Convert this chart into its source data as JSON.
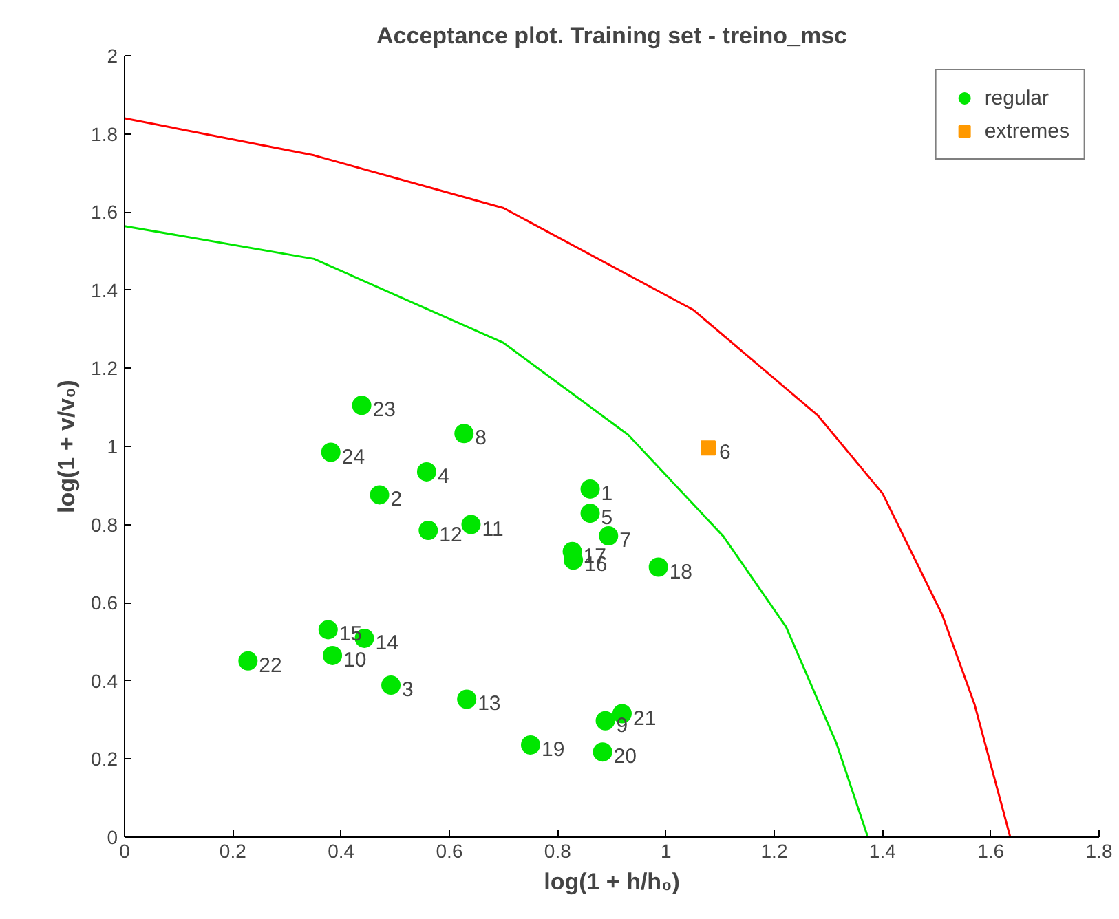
{
  "chart_data": {
    "type": "scatter",
    "title": "Acceptance plot. Training set - treino_msc",
    "xlabel": "log(1 + h/h₀)",
    "ylabel": "log(1 + v/v₀)",
    "xlim": [
      0,
      1.8
    ],
    "ylim": [
      0,
      2
    ],
    "xticks": [
      0,
      0.2,
      0.4,
      0.6,
      0.8,
      1,
      1.2,
      1.4,
      1.6,
      1.8
    ],
    "yticks": [
      0,
      0.2,
      0.4,
      0.6,
      0.8,
      1,
      1.2,
      1.4,
      1.6,
      1.8,
      2
    ],
    "grid": false,
    "legend": "top right",
    "series": [
      {
        "name": "regular",
        "marker": "circle",
        "color": "#00e600",
        "x": [
          0.86,
          0.471,
          0.492,
          0.558,
          0.86,
          0.894,
          0.888,
          0.627,
          0.384,
          0.64,
          0.561,
          0.632,
          0.443,
          0.376,
          0.829,
          0.827,
          0.986,
          0.75,
          0.883,
          0.919,
          0.228,
          0.438,
          0.381
        ],
        "values": [
          0.891,
          0.876,
          0.389,
          0.935,
          0.829,
          0.771,
          0.298,
          1.033,
          0.465,
          0.8,
          0.785,
          0.353,
          0.509,
          0.531,
          0.709,
          0.731,
          0.691,
          0.236,
          0.218,
          0.316,
          0.451,
          1.105,
          0.985
        ]
      },
      {
        "name": "extremes",
        "marker": "square",
        "color": "#ff9900",
        "x": [
          1.078
        ],
        "values": [
          0.996
        ]
      },
      {
        "type": "line",
        "color": "#ff0000",
        "x": [
          0,
          0.35,
          0.7,
          1.05,
          1.28,
          1.4,
          1.51,
          1.57,
          1.636
        ],
        "values": [
          1.84,
          1.745,
          1.61,
          1.35,
          1.08,
          0.88,
          0.57,
          0.34,
          0
        ]
      },
      {
        "type": "line",
        "color": "#00e600",
        "x": [
          0,
          0.35,
          0.7,
          0.93,
          1.106,
          1.222,
          1.315,
          1.373
        ],
        "values": [
          1.564,
          1.48,
          1.265,
          1.03,
          0.77,
          0.538,
          0.24,
          0
        ]
      }
    ],
    "annotations": [
      {
        "text": "1",
        "x": 0.86,
        "y": 0.891
      },
      {
        "text": "2",
        "x": 0.471,
        "y": 0.876
      },
      {
        "text": "3",
        "x": 0.492,
        "y": 0.389
      },
      {
        "text": "4",
        "x": 0.558,
        "y": 0.935
      },
      {
        "text": "5",
        "x": 0.86,
        "y": 0.829
      },
      {
        "text": "6",
        "x": 1.078,
        "y": 0.996
      },
      {
        "text": "7",
        "x": 0.894,
        "y": 0.771
      },
      {
        "text": "8",
        "x": 0.627,
        "y": 1.033
      },
      {
        "text": "9",
        "x": 0.888,
        "y": 0.298
      },
      {
        "text": "10",
        "x": 0.384,
        "y": 0.465
      },
      {
        "text": "11",
        "x": 0.64,
        "y": 0.8
      },
      {
        "text": "12",
        "x": 0.561,
        "y": 0.785
      },
      {
        "text": "13",
        "x": 0.632,
        "y": 0.353
      },
      {
        "text": "14",
        "x": 0.443,
        "y": 0.509
      },
      {
        "text": "15",
        "x": 0.376,
        "y": 0.531
      },
      {
        "text": "16",
        "x": 0.829,
        "y": 0.709
      },
      {
        "text": "17",
        "x": 0.827,
        "y": 0.731
      },
      {
        "text": "18",
        "x": 0.986,
        "y": 0.691
      },
      {
        "text": "19",
        "x": 0.75,
        "y": 0.236
      },
      {
        "text": "20",
        "x": 0.883,
        "y": 0.218
      },
      {
        "text": "21",
        "x": 0.919,
        "y": 0.316
      },
      {
        "text": "22",
        "x": 0.228,
        "y": 0.451
      },
      {
        "text": "23",
        "x": 0.438,
        "y": 1.105
      },
      {
        "text": "24",
        "x": 0.381,
        "y": 0.985
      }
    ]
  }
}
